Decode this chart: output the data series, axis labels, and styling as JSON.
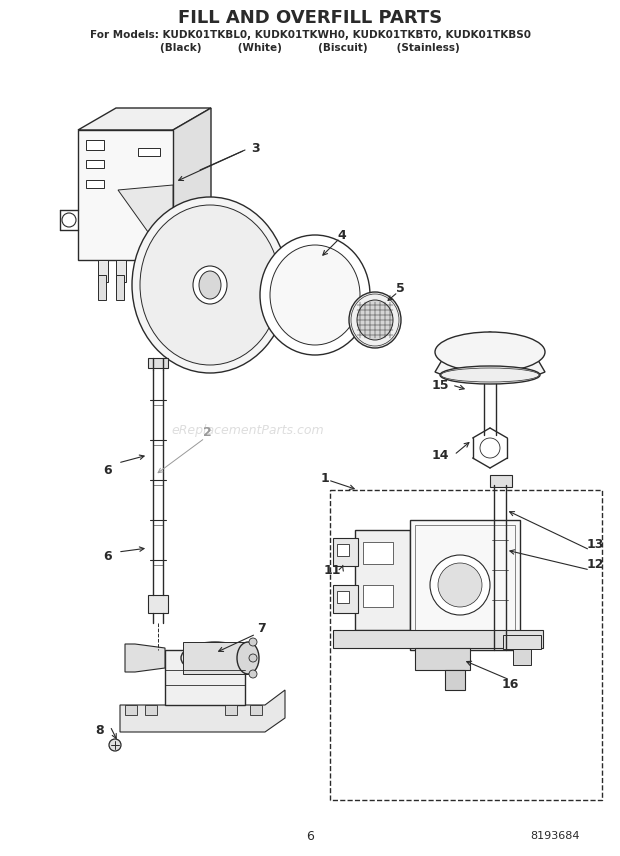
{
  "title": "FILL AND OVERFILL PARTS",
  "subtitle1": "For Models: KUDK01TKBL0, KUDK01TKWH0, KUDK01TKBT0, KUDK01TKBS0",
  "subtitle2": "(Black)          (White)          (Biscuit)        (Stainless)",
  "page_num": "6",
  "part_num": "8193684",
  "watermark": "eReplacementParts.com",
  "bg_color": "#ffffff",
  "line_color": "#2a2a2a",
  "label_color": "#1a1a1a",
  "fig_width": 6.2,
  "fig_height": 8.56,
  "dpi": 100
}
